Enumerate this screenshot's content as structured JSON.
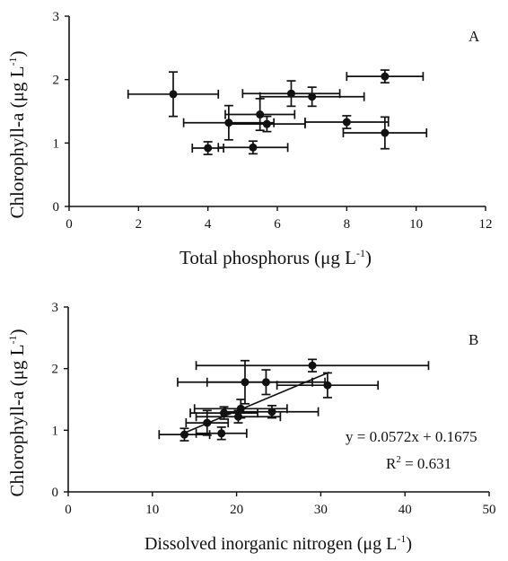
{
  "chart_data": [
    {
      "panel": "A",
      "type": "scatter",
      "xlabel": "Total phosphorus (μg L",
      "xlabel_sup": "-1",
      "xlabel_end": ")",
      "ylabel": "Chlorophyll-a (μg L",
      "ylabel_sup": "-1",
      "ylabel_end": ")",
      "xlim": [
        0,
        12
      ],
      "ylim": [
        0,
        3
      ],
      "xticks": [
        "0",
        "2",
        "4",
        "6",
        "8",
        "10",
        "12"
      ],
      "yticks": [
        "0",
        "1",
        "2",
        "3"
      ],
      "grid": false,
      "points": [
        {
          "x": 3.0,
          "y": 1.77,
          "xerr": 1.3,
          "yerr": 0.35
        },
        {
          "x": 4.0,
          "y": 0.92,
          "xerr": 0.45,
          "yerr": 0.1
        },
        {
          "x": 5.3,
          "y": 0.93,
          "xerr": 1.0,
          "yerr": 0.1
        },
        {
          "x": 4.6,
          "y": 1.32,
          "xerr": 1.3,
          "yerr": 0.27
        },
        {
          "x": 5.5,
          "y": 1.45,
          "xerr": 1.0,
          "yerr": 0.25
        },
        {
          "x": 5.7,
          "y": 1.3,
          "xerr": 1.1,
          "yerr": 0.12
        },
        {
          "x": 6.4,
          "y": 1.78,
          "xerr": 1.4,
          "yerr": 0.2
        },
        {
          "x": 7.0,
          "y": 1.73,
          "xerr": 1.5,
          "yerr": 0.15
        },
        {
          "x": 8.0,
          "y": 1.33,
          "xerr": 1.2,
          "yerr": 0.1
        },
        {
          "x": 9.1,
          "y": 1.16,
          "xerr": 1.2,
          "yerr": 0.25
        },
        {
          "x": 9.1,
          "y": 2.05,
          "xerr": 1.1,
          "yerr": 0.1
        }
      ]
    },
    {
      "panel": "B",
      "type": "scatter",
      "xlabel": "Dissolved inorganic nitrogen (μg L",
      "xlabel_sup": "-1",
      "xlabel_end": ")",
      "ylabel": "Chlorophyll-a (μg L",
      "ylabel_sup": "-1",
      "ylabel_end": ")",
      "xlim": [
        0,
        50
      ],
      "ylim": [
        0,
        3
      ],
      "xticks": [
        "0",
        "10",
        "20",
        "30",
        "40",
        "50"
      ],
      "yticks": [
        "0",
        "1",
        "2",
        "3"
      ],
      "grid": false,
      "fit": {
        "slope": 0.0572,
        "intercept": 0.1675,
        "x_range": [
          14,
          31
        ]
      },
      "equation": "y = 0.0572x + 0.1675",
      "r2_label": "R",
      "r2_sup": "2",
      "r2_value": " = 0.631",
      "points": [
        {
          "x": 13.8,
          "y": 0.93,
          "xerr": 3.0,
          "yerr": 0.1
        },
        {
          "x": 16.5,
          "y": 1.12,
          "xerr": 2.5,
          "yerr": 0.2
        },
        {
          "x": 18.2,
          "y": 0.95,
          "xerr": 3.0,
          "yerr": 0.1
        },
        {
          "x": 18.5,
          "y": 1.28,
          "xerr": 4.0,
          "yerr": 0.1
        },
        {
          "x": 20.2,
          "y": 1.22,
          "xerr": 5.0,
          "yerr": 0.1
        },
        {
          "x": 20.5,
          "y": 1.35,
          "xerr": 5.5,
          "yerr": 0.15
        },
        {
          "x": 21.0,
          "y": 1.78,
          "xerr": 8.0,
          "yerr": 0.35
        },
        {
          "x": 23.5,
          "y": 1.78,
          "xerr": 7.0,
          "yerr": 0.2
        },
        {
          "x": 24.2,
          "y": 1.3,
          "xerr": 5.5,
          "yerr": 0.1
        },
        {
          "x": 29.0,
          "y": 2.05,
          "xerr": 13.8,
          "yerr": 0.1
        },
        {
          "x": 30.8,
          "y": 1.73,
          "xerr": 6.0,
          "yerr": 0.2
        }
      ]
    }
  ]
}
